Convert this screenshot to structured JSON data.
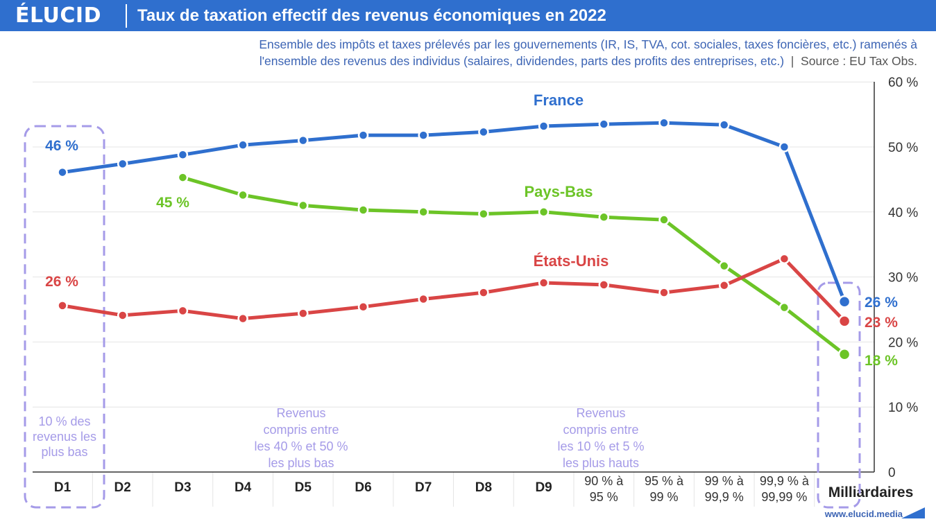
{
  "header": {
    "logo": "ÉLUCID",
    "title": "Taux de taxation effectif des revenus économiques en 2022"
  },
  "subtitle": {
    "line1": "Ensemble des impôts et taxes prélevés par les gouvernements (IR, IS, TVA, cot. sociales, taxes foncières, etc.) ramenés à",
    "line2": "l'ensemble des revenus des individus (salaires, dividendes, parts des profits des entreprises, etc.)",
    "separator": "|",
    "source": "Source : EU Tax Obs."
  },
  "footer": {
    "url": "www.elucid.media"
  },
  "colors": {
    "header": "#2f6fce",
    "france": "#2f6fce",
    "pays_bas": "#6cc427",
    "etats_unis": "#d94545",
    "annotation": "#a59be8"
  },
  "chart_data": {
    "type": "line",
    "categories": [
      [
        "D1"
      ],
      [
        "D2"
      ],
      [
        "D3"
      ],
      [
        "D4"
      ],
      [
        "D5"
      ],
      [
        "D6"
      ],
      [
        "D7"
      ],
      [
        "D8"
      ],
      [
        "D9"
      ],
      [
        "90 % à",
        "95 %"
      ],
      [
        "95 % à",
        "99 %"
      ],
      [
        "99 % à",
        "99,9 %"
      ],
      [
        "99,9 % à",
        "99,99 %"
      ],
      [
        "Milliardaires"
      ]
    ],
    "ylim": [
      0,
      60
    ],
    "yticks": [
      {
        "value": 0,
        "label": "0"
      },
      {
        "value": 10,
        "label": "10 %"
      },
      {
        "value": 20,
        "label": "20 %"
      },
      {
        "value": 30,
        "label": "30 %"
      },
      {
        "value": 40,
        "label": "40 %"
      },
      {
        "value": 50,
        "label": "50 %"
      },
      {
        "value": 60,
        "label": "60 %"
      }
    ],
    "grid": true,
    "series": [
      {
        "name": "France",
        "key": "france",
        "color": "#2f6fce",
        "values": [
          46.1,
          47.4,
          48.8,
          50.3,
          51.0,
          51.8,
          51.8,
          52.3,
          53.2,
          53.5,
          53.7,
          53.4,
          50.0,
          26.2
        ],
        "start_label": "46 %",
        "end_label": "26 %"
      },
      {
        "name": "Pays-Bas",
        "key": "pays_bas",
        "color": "#6cc427",
        "values": [
          null,
          null,
          45.3,
          42.6,
          41.0,
          40.3,
          40.0,
          39.7,
          40.0,
          39.2,
          38.8,
          31.7,
          25.3,
          18.1
        ],
        "start_label": "45 %",
        "end_label": "18 %"
      },
      {
        "name": "États-Unis",
        "key": "etats_unis",
        "color": "#d94545",
        "values": [
          25.6,
          24.1,
          24.8,
          23.6,
          24.4,
          25.4,
          26.6,
          27.6,
          29.1,
          28.8,
          27.6,
          28.7,
          32.8,
          23.2
        ],
        "start_label": "26 %",
        "end_label": "23 %"
      }
    ],
    "annotations": {
      "d1": [
        "10 % des",
        "revenus les",
        "plus bas"
      ],
      "mid_low": [
        "Revenus",
        "compris entre",
        "les 40 % et 50 %",
        "les plus bas"
      ],
      "mid_high": [
        "Revenus",
        "compris entre",
        "les 10 % et 5 %",
        "les plus hauts"
      ]
    }
  }
}
